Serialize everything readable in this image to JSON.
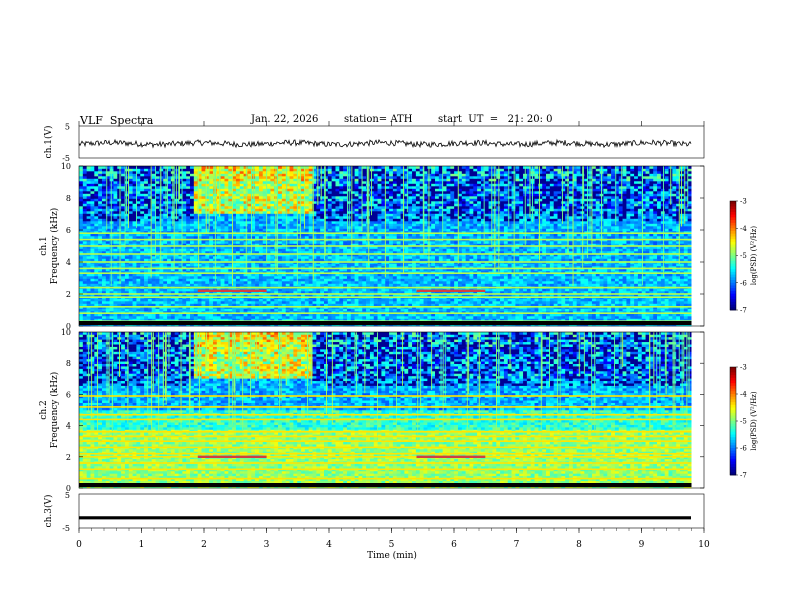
{
  "header": {
    "title": "VLF  Spectra",
    "date": "Jan. 22, 2026",
    "station": "station= ATH",
    "start_ut": "start  UT  =   21: 20: 0"
  },
  "chart_data": [
    {
      "type": "line",
      "panel": "ch1-waveform",
      "ylabel": "ch.1(V)",
      "yticks": [
        "5",
        "-5"
      ],
      "ylim": [
        -5,
        5
      ],
      "baseline": -0.5,
      "amplitude": 0.9
    },
    {
      "type": "heatmap",
      "panel": "ch1-spectrogram",
      "ylabel": "ch.1\nFrequency (kHz)",
      "ylabel_lines": [
        "ch.1",
        "Frequency (kHz)"
      ],
      "ylim": [
        0,
        10
      ],
      "yticks": [
        "0",
        "2",
        "4",
        "6",
        "8",
        "10"
      ],
      "colorbar": {
        "label": "log(PSD) (V²/Hz)",
        "range": [
          -7,
          -3
        ],
        "ticks": [
          "-3",
          "-4",
          "-5",
          "-6",
          "-7"
        ]
      },
      "noise_bands_khz": [
        0.3,
        0.8,
        1.2,
        1.8,
        2.0,
        2.4,
        3.3,
        3.6,
        4.0,
        4.5,
        5.0,
        5.4,
        5.8
      ],
      "signal_bands_khz": [
        {
          "f": 2.2,
          "t_start": 1.9,
          "t_end": 3.0,
          "level": "high"
        },
        {
          "f": 2.2,
          "t_start": 5.4,
          "t_end": 6.5,
          "level": "high"
        }
      ]
    },
    {
      "type": "heatmap",
      "panel": "ch2-spectrogram",
      "ylabel": "ch.2\nFrequency (kHz)",
      "ylabel_lines": [
        "ch.2",
        "Frequency (kHz)"
      ],
      "ylim": [
        0,
        10
      ],
      "yticks": [
        "0",
        "2",
        "4",
        "6",
        "8",
        "10"
      ],
      "colorbar": {
        "label": "log(PSD) (V²/Hz)",
        "range": [
          -7,
          -3
        ],
        "ticks": [
          "-3",
          "-4",
          "-5",
          "-6",
          "-7"
        ]
      },
      "noise_bands_khz": [
        0.6,
        1.2,
        1.6,
        2.0,
        2.2,
        2.6,
        3.0,
        3.3,
        3.6,
        4.4,
        4.7,
        5.2,
        5.9
      ],
      "signal_bands_khz": [
        {
          "f": 2.0,
          "t_start": 1.9,
          "t_end": 3.0,
          "level": "high"
        },
        {
          "f": 2.0,
          "t_start": 5.4,
          "t_end": 6.5,
          "level": "high"
        }
      ]
    },
    {
      "type": "line",
      "panel": "ch3-waveform",
      "ylabel": "ch.3(V)",
      "yticks": [
        "5",
        "-5"
      ],
      "ylim": [
        -5,
        5
      ],
      "baseline": -2.0,
      "amplitude": 0.05
    }
  ],
  "x_axis": {
    "label": "Time  (min)",
    "xlim": [
      0,
      10
    ],
    "data_end": 9.8,
    "ticks": [
      "0",
      "1",
      "2",
      "3",
      "4",
      "5",
      "6",
      "7",
      "8",
      "9",
      "10"
    ]
  }
}
